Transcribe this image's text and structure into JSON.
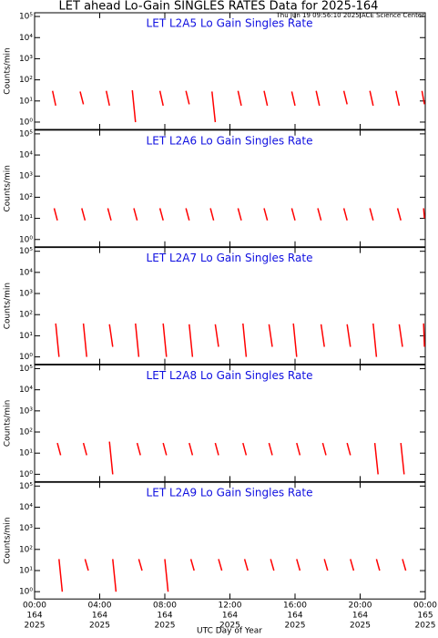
{
  "header": {
    "title": "LET ahead Lo-Gain SINGLES RATES Data for 2025-164",
    "timestamp": "Thu Jun 19 09:56:10 2025 ACE Science Center",
    "xlabel": "UTC Day of Year"
  },
  "chart_data": [
    {
      "type": "line",
      "title": "LET  L2A5  Lo Gain  Singles Rate",
      "ylabel": "Counts/min",
      "color": "#ff0000",
      "ylim": [
        0.45,
        150000
      ],
      "log": true,
      "xlim": [
        0,
        24
      ],
      "yticks": [
        {
          "value": 1,
          "label": "10⁰"
        },
        {
          "value": 10,
          "label": "10¹"
        },
        {
          "value": 100,
          "label": "10²"
        },
        {
          "value": 1000,
          "label": "10³"
        },
        {
          "value": 10000,
          "label": "10⁴"
        },
        {
          "value": 100000,
          "label": "10⁵"
        }
      ],
      "x": [
        1.1,
        1.3,
        1.4,
        2.8,
        3.0,
        3.1,
        4.4,
        4.6,
        4.7,
        6.0,
        6.2,
        6.3,
        7.7,
        7.9,
        8.0,
        9.3,
        9.5,
        9.6,
        10.9,
        11.1,
        11.2,
        12.5,
        12.7,
        12.8,
        14.1,
        14.3,
        14.4,
        15.8,
        16.0,
        16.1,
        17.3,
        17.5,
        17.6,
        19.0,
        19.2,
        19.3,
        20.6,
        20.8,
        20.9,
        22.2,
        22.4,
        22.5,
        23.8,
        23.95
      ],
      "values": [
        30,
        6,
        null,
        28,
        7,
        null,
        30,
        6,
        null,
        32,
        1,
        null,
        30,
        6,
        null,
        30,
        7,
        null,
        28,
        1,
        null,
        30,
        6,
        null,
        30,
        6,
        null,
        28,
        6,
        null,
        30,
        6,
        null,
        30,
        7,
        null,
        30,
        6,
        null,
        30,
        6,
        null,
        30,
        7
      ]
    },
    {
      "type": "line",
      "title": "LET  L2A6  Lo Gain  Singles Rate",
      "ylabel": "Counts/min",
      "color": "#ff0000",
      "ylim": [
        0.45,
        150000
      ],
      "log": true,
      "xlim": [
        0,
        24
      ],
      "yticks": [
        {
          "value": 1,
          "label": "10⁰"
        },
        {
          "value": 10,
          "label": "10¹"
        },
        {
          "value": 100,
          "label": "10²"
        },
        {
          "value": 1000,
          "label": "10³"
        },
        {
          "value": 10000,
          "label": "10⁴"
        },
        {
          "value": 100000,
          "label": "10⁵"
        }
      ],
      "x": [
        1.2,
        1.4,
        1.5,
        2.9,
        3.1,
        3.2,
        4.5,
        4.7,
        4.8,
        6.1,
        6.3,
        6.4,
        7.7,
        7.9,
        8.0,
        9.3,
        9.5,
        9.6,
        10.8,
        11.0,
        11.1,
        12.5,
        12.7,
        12.8,
        14.1,
        14.3,
        14.4,
        15.8,
        16.0,
        16.1,
        17.4,
        17.6,
        17.7,
        19.0,
        19.2,
        19.3,
        20.6,
        20.8,
        20.9,
        22.3,
        22.5,
        22.6,
        23.9,
        23.95
      ],
      "values": [
        30,
        8,
        null,
        30,
        8,
        null,
        30,
        8,
        null,
        30,
        8,
        null,
        30,
        8,
        null,
        30,
        8,
        null,
        30,
        8,
        null,
        30,
        8,
        null,
        30,
        8,
        null,
        30,
        8,
        null,
        30,
        8,
        null,
        30,
        8,
        null,
        30,
        8,
        null,
        30,
        8,
        null,
        30,
        10
      ]
    },
    {
      "type": "line",
      "title": "LET  L2A7  Lo Gain  Singles Rate",
      "ylabel": "Counts/min",
      "color": "#ff0000",
      "ylim": [
        0.45,
        150000
      ],
      "log": true,
      "xlim": [
        0,
        24
      ],
      "yticks": [
        {
          "value": 1,
          "label": "10⁰"
        },
        {
          "value": 10,
          "label": "10¹"
        },
        {
          "value": 100,
          "label": "10²"
        },
        {
          "value": 1000,
          "label": "10³"
        },
        {
          "value": 10000,
          "label": "10⁴"
        },
        {
          "value": 100000,
          "label": "10⁵"
        }
      ],
      "x": [
        1.3,
        1.5,
        1.6,
        3.0,
        3.2,
        3.3,
        4.6,
        4.8,
        4.9,
        6.2,
        6.4,
        6.5,
        7.9,
        8.1,
        8.2,
        9.5,
        9.7,
        9.8,
        11.1,
        11.3,
        11.4,
        12.8,
        13.0,
        13.1,
        14.4,
        14.6,
        14.7,
        15.9,
        16.1,
        16.2,
        17.6,
        17.8,
        17.9,
        19.2,
        19.4,
        19.5,
        20.8,
        21.0,
        21.1,
        22.4,
        22.6,
        22.7,
        23.9,
        23.95
      ],
      "values": [
        38,
        1,
        null,
        38,
        1,
        null,
        35,
        3,
        null,
        38,
        1,
        null,
        38,
        1,
        null,
        35,
        1,
        null,
        35,
        3,
        null,
        38,
        1,
        null,
        35,
        3,
        null,
        38,
        1,
        null,
        35,
        3,
        null,
        35,
        3,
        null,
        38,
        1,
        null,
        35,
        3,
        null,
        38,
        3
      ]
    },
    {
      "type": "line",
      "title": "LET  L2A8  Lo Gain  Singles Rate",
      "ylabel": "Counts/min",
      "color": "#ff0000",
      "ylim": [
        0.45,
        150000
      ],
      "log": true,
      "xlim": [
        0,
        24
      ],
      "yticks": [
        {
          "value": 1,
          "label": "10⁰"
        },
        {
          "value": 10,
          "label": "10¹"
        },
        {
          "value": 100,
          "label": "10²"
        },
        {
          "value": 1000,
          "label": "10³"
        },
        {
          "value": 10000,
          "label": "10⁴"
        },
        {
          "value": 100000,
          "label": "10⁵"
        }
      ],
      "x": [
        1.4,
        1.6,
        1.7,
        3.0,
        3.2,
        3.3,
        4.6,
        4.8,
        4.9,
        6.3,
        6.5,
        6.6,
        7.9,
        8.1,
        8.2,
        9.5,
        9.7,
        9.8,
        11.1,
        11.3,
        11.4,
        12.8,
        13.0,
        13.1,
        14.4,
        14.6,
        14.7,
        16.1,
        16.3,
        16.4,
        17.7,
        17.9,
        18.0,
        19.2,
        19.4,
        19.5,
        20.9,
        21.1,
        21.2,
        22.5,
        22.7
      ],
      "values": [
        30,
        8,
        null,
        30,
        8,
        null,
        35,
        1,
        null,
        30,
        8,
        null,
        30,
        8,
        null,
        30,
        8,
        null,
        30,
        8,
        null,
        30,
        8,
        null,
        30,
        8,
        null,
        30,
        8,
        null,
        30,
        8,
        null,
        30,
        8,
        null,
        30,
        1,
        null,
        30,
        1
      ]
    },
    {
      "type": "line",
      "title": "LET  L2A9  Lo Gain  Singles Rate",
      "ylabel": "Counts/min",
      "color": "#ff0000",
      "ylim": [
        0.45,
        150000
      ],
      "log": true,
      "xlim": [
        0,
        24
      ],
      "yticks": [
        {
          "value": 1,
          "label": "10⁰"
        },
        {
          "value": 10,
          "label": "10¹"
        },
        {
          "value": 100,
          "label": "10²"
        },
        {
          "value": 1000,
          "label": "10³"
        },
        {
          "value": 10000,
          "label": "10⁴"
        },
        {
          "value": 100000,
          "label": "10⁵"
        }
      ],
      "x": [
        1.5,
        1.7,
        1.8,
        3.1,
        3.3,
        3.4,
        4.8,
        5.0,
        5.1,
        6.4,
        6.6,
        6.7,
        8.0,
        8.2,
        8.3,
        9.6,
        9.8,
        9.9,
        11.3,
        11.5,
        11.6,
        12.9,
        13.1,
        13.2,
        14.5,
        14.7,
        14.8,
        16.1,
        16.3,
        16.4,
        17.8,
        18.0,
        18.1,
        19.4,
        19.6,
        19.7,
        21.0,
        21.2,
        21.3,
        22.6,
        22.8
      ],
      "values": [
        35,
        1,
        null,
        35,
        10,
        null,
        35,
        1,
        null,
        35,
        10,
        null,
        35,
        1,
        null,
        35,
        10,
        null,
        35,
        10,
        null,
        35,
        10,
        null,
        35,
        10,
        null,
        35,
        10,
        null,
        35,
        10,
        null,
        35,
        10,
        null,
        35,
        10,
        null,
        35,
        10
      ]
    }
  ],
  "xaxis": {
    "xticks": [
      {
        "value": 0,
        "label": "00:00"
      },
      {
        "value": 4,
        "label": "04:00"
      },
      {
        "value": 8,
        "label": "08:00"
      },
      {
        "value": 12,
        "label": "12:00"
      },
      {
        "value": 16,
        "label": "16:00"
      },
      {
        "value": 20,
        "label": "20:00"
      },
      {
        "value": 24,
        "label": "00:00"
      }
    ],
    "days": [
      "164",
      "164",
      "164",
      "164",
      "164",
      "164",
      "165"
    ],
    "years": [
      "2025",
      "2025",
      "2025",
      "2025",
      "2025",
      "2025",
      "2025"
    ]
  }
}
